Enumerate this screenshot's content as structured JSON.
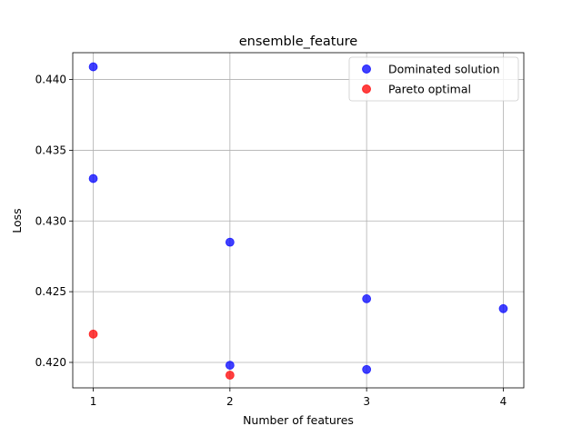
{
  "chart_data": {
    "type": "scatter",
    "title": "ensemble_feature",
    "xlabel": "Number of features",
    "ylabel": "Loss",
    "xlim": [
      0.85,
      4.15
    ],
    "ylim": [
      0.4182,
      0.4419
    ],
    "xticks": [
      1,
      2,
      3,
      4
    ],
    "xtick_labels": [
      "1",
      "2",
      "3",
      "4"
    ],
    "yticks": [
      0.42,
      0.425,
      0.43,
      0.435,
      0.44
    ],
    "ytick_labels": [
      "0.420",
      "0.425",
      "0.430",
      "0.435",
      "0.440"
    ],
    "grid": true,
    "legend_position": "top-right",
    "series": [
      {
        "name": "Dominated solution",
        "color": "#0000ff",
        "points": [
          {
            "x": 1,
            "y": 0.4409
          },
          {
            "x": 1,
            "y": 0.433
          },
          {
            "x": 2,
            "y": 0.4285
          },
          {
            "x": 2,
            "y": 0.4198
          },
          {
            "x": 3,
            "y": 0.4245
          },
          {
            "x": 3,
            "y": 0.4195
          },
          {
            "x": 4,
            "y": 0.4238
          }
        ]
      },
      {
        "name": "Pareto optimal",
        "color": "#ff0000",
        "points": [
          {
            "x": 1,
            "y": 0.422
          },
          {
            "x": 2,
            "y": 0.4191
          }
        ]
      }
    ]
  }
}
